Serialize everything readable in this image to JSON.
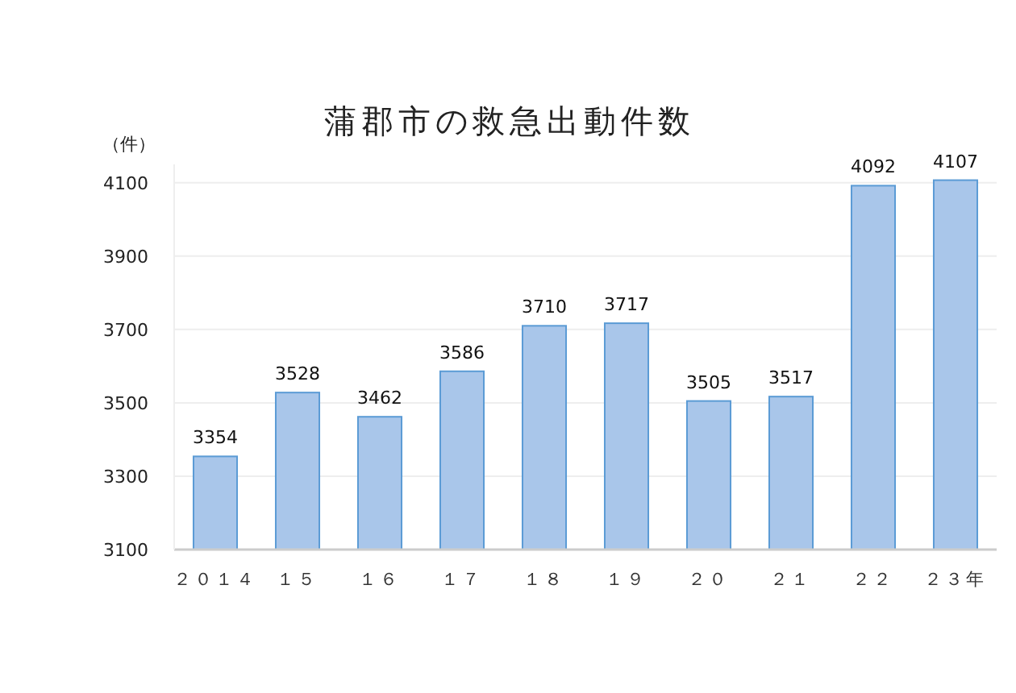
{
  "chart_data": {
    "type": "bar",
    "title": "蒲郡市の救急出動件数",
    "ylabel": "（件）",
    "categories": [
      "２０１４",
      "１５",
      "１６",
      "１７",
      "１８",
      "１９",
      "２０",
      "２１",
      "２２",
      "２３年"
    ],
    "values": [
      3354,
      3528,
      3462,
      3586,
      3710,
      3717,
      3505,
      3517,
      4092,
      4107
    ],
    "color": "#a9c6ea",
    "ylim": [
      3100,
      4150
    ],
    "yticks": [
      3100,
      3300,
      3500,
      3700,
      3900,
      4100
    ],
    "grid": "y",
    "data_labels": true
  }
}
